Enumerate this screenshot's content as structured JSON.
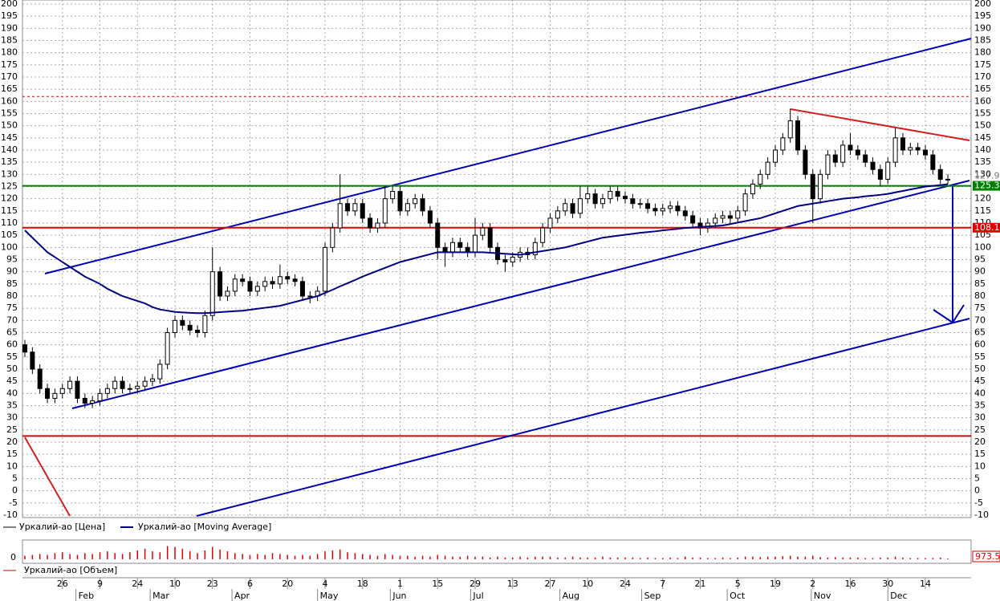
{
  "chart_data": [
    {
      "type": "candlestick",
      "ylim": [
        -10,
        200
      ],
      "yticks": [
        -10,
        -5,
        0,
        5,
        10,
        15,
        20,
        25,
        30,
        35,
        40,
        45,
        50,
        55,
        60,
        65,
        70,
        75,
        80,
        85,
        90,
        95,
        100,
        105,
        110,
        115,
        120,
        125,
        130,
        135,
        140,
        145,
        150,
        155,
        160,
        165,
        170,
        175,
        180,
        185,
        190,
        195,
        200
      ],
      "grid": true,
      "xticks": [
        {
          "value": 5,
          "label": "26"
        },
        {
          "value": 10,
          "label": "9"
        },
        {
          "value": 15,
          "label": "24"
        },
        {
          "value": 20,
          "label": "10"
        },
        {
          "value": 25,
          "label": "23"
        },
        {
          "value": 30,
          "label": "6"
        },
        {
          "value": 35,
          "label": "20"
        },
        {
          "value": 40,
          "label": "4"
        },
        {
          "value": 45,
          "label": "18"
        },
        {
          "value": 50,
          "label": "1"
        },
        {
          "value": 55,
          "label": "15"
        },
        {
          "value": 60,
          "label": "29"
        },
        {
          "value": 65,
          "label": "13"
        },
        {
          "value": 70,
          "label": "27"
        },
        {
          "value": 75,
          "label": "10"
        },
        {
          "value": 80,
          "label": "24"
        },
        {
          "value": 85,
          "label": "7"
        },
        {
          "value": 90,
          "label": "21"
        },
        {
          "value": 95,
          "label": "5"
        },
        {
          "value": 100,
          "label": "19"
        },
        {
          "value": 105,
          "label": "2"
        },
        {
          "value": 110,
          "label": "16"
        },
        {
          "value": 115,
          "label": "30"
        },
        {
          "value": 120,
          "label": "14"
        }
      ],
      "months": [
        {
          "value": 6.8,
          "label": "Feb"
        },
        {
          "value": 16.7,
          "label": "Mar"
        },
        {
          "value": 27.6,
          "label": "Apr"
        },
        {
          "value": 39,
          "label": "May"
        },
        {
          "value": 48.7,
          "label": "Jun"
        },
        {
          "value": 59.4,
          "label": "Jul"
        },
        {
          "value": 71.3,
          "label": "Aug"
        },
        {
          "value": 82.2,
          "label": "Sep"
        },
        {
          "value": 93.6,
          "label": "Oct"
        },
        {
          "value": 104.8,
          "label": "Nov"
        },
        {
          "value": 115,
          "label": "Dec"
        }
      ],
      "series": [
        {
          "name": "Уркалий-ао [Цена]",
          "color": "#000000",
          "open": [
            60,
            57,
            50,
            42,
            38,
            40,
            42,
            45,
            38,
            36,
            37,
            40,
            42,
            45,
            42,
            42,
            43,
            45,
            46,
            52,
            65,
            70,
            68,
            66,
            65,
            72,
            90,
            80,
            82,
            87,
            86,
            82,
            84,
            86,
            85,
            88,
            87,
            86,
            80,
            80,
            82,
            100,
            108,
            118,
            115,
            118,
            112,
            108,
            110,
            120,
            123,
            115,
            118,
            120,
            115,
            110,
            100,
            98,
            102,
            100,
            98,
            105,
            108,
            100,
            95,
            94,
            96,
            98,
            97,
            102,
            108,
            112,
            115,
            118,
            114,
            120,
            122,
            118,
            120,
            123,
            121,
            120,
            118,
            118,
            116,
            115,
            116,
            117,
            115,
            113,
            110,
            108,
            110,
            112,
            113,
            112,
            115,
            122,
            126,
            130,
            135,
            140,
            145,
            152,
            140,
            130,
            120,
            130,
            138,
            135,
            142,
            140,
            138,
            135,
            132,
            128,
            135,
            145,
            140,
            141,
            140,
            138,
            132,
            128
          ],
          "high": [
            62,
            59,
            52,
            44,
            42,
            44,
            47,
            47,
            40,
            39,
            42,
            44,
            47,
            47,
            44,
            45,
            47,
            48,
            54,
            67,
            72,
            72,
            70,
            68,
            74,
            100,
            92,
            84,
            89,
            89,
            88,
            86,
            88,
            88,
            93,
            90,
            89,
            88,
            82,
            84,
            102,
            110,
            130,
            120,
            120,
            120,
            114,
            112,
            125,
            125,
            125,
            120,
            122,
            122,
            117,
            112,
            102,
            104,
            104,
            102,
            112,
            110,
            110,
            102,
            97,
            98,
            100,
            100,
            104,
            110,
            114,
            117,
            120,
            120,
            125,
            125,
            124,
            122,
            125,
            125,
            123,
            122,
            120,
            120,
            118,
            118,
            119,
            119,
            117,
            115,
            112,
            112,
            114,
            115,
            115,
            117,
            124,
            128,
            132,
            137,
            142,
            147,
            157,
            154,
            142,
            132,
            132,
            140,
            140,
            144,
            147,
            142,
            140,
            137,
            134,
            137,
            149,
            147,
            143,
            143,
            142,
            140,
            134,
            130
          ],
          "low": [
            55,
            48,
            40,
            36,
            36,
            38,
            40,
            36,
            34,
            34,
            35,
            38,
            40,
            40,
            40,
            40,
            41,
            43,
            44,
            50,
            63,
            66,
            64,
            63,
            63,
            70,
            78,
            78,
            80,
            84,
            80,
            80,
            82,
            83,
            83,
            85,
            84,
            78,
            77,
            78,
            80,
            98,
            106,
            113,
            113,
            110,
            106,
            106,
            108,
            118,
            113,
            113,
            116,
            113,
            108,
            95,
            92,
            96,
            98,
            96,
            96,
            103,
            98,
            93,
            90,
            92,
            94,
            95,
            95,
            100,
            106,
            110,
            113,
            112,
            112,
            118,
            116,
            116,
            118,
            119,
            118,
            116,
            116,
            114,
            113,
            113,
            114,
            113,
            111,
            108,
            105,
            106,
            108,
            110,
            110,
            110,
            113,
            120,
            124,
            128,
            133,
            138,
            143,
            138,
            128,
            110,
            118,
            128,
            133,
            133,
            138,
            136,
            133,
            130,
            125,
            126,
            133,
            138,
            138,
            138,
            136,
            130,
            126,
            126
          ],
          "close": [
            57,
            50,
            42,
            38,
            40,
            42,
            45,
            38,
            36,
            37,
            40,
            42,
            45,
            42,
            42,
            43,
            45,
            46,
            52,
            65,
            70,
            68,
            66,
            65,
            72,
            90,
            80,
            82,
            87,
            86,
            82,
            84,
            86,
            85,
            88,
            87,
            86,
            80,
            80,
            82,
            100,
            108,
            118,
            115,
            118,
            112,
            108,
            110,
            120,
            123,
            115,
            118,
            120,
            115,
            110,
            100,
            98,
            102,
            100,
            98,
            105,
            108,
            100,
            95,
            94,
            96,
            98,
            97,
            102,
            108,
            112,
            115,
            118,
            114,
            120,
            122,
            118,
            120,
            123,
            121,
            120,
            118,
            118,
            116,
            115,
            116,
            117,
            115,
            113,
            110,
            108,
            110,
            112,
            113,
            112,
            115,
            122,
            126,
            130,
            135,
            140,
            145,
            152,
            140,
            130,
            120,
            130,
            138,
            135,
            142,
            140,
            138,
            135,
            132,
            128,
            135,
            145,
            140,
            141,
            140,
            138,
            132,
            128,
            127.9
          ]
        },
        {
          "name": "Уркалий-ао [Moving Average]",
          "color": "#000080",
          "values": [
            107,
            104,
            101,
            98,
            96,
            94,
            92,
            90,
            88,
            86.5,
            85,
            83,
            81.5,
            80,
            79,
            78,
            77,
            75.5,
            74.5,
            74,
            73.5,
            73.3,
            73.1,
            73,
            73,
            73.2,
            73.4,
            73.6,
            73.8,
            74,
            74.4,
            74.8,
            75.2,
            75.6,
            76,
            76.8,
            77.6,
            78.4,
            79.2,
            80,
            81.3,
            82.6,
            84,
            85.3,
            86.6,
            88,
            89.2,
            90.4,
            91.6,
            92.8,
            94,
            94.8,
            95.6,
            96.4,
            97.2,
            98,
            98,
            98,
            98,
            98,
            98,
            98,
            97.8,
            97.6,
            97.4,
            97.2,
            97,
            97.5,
            98,
            98.5,
            99,
            99.5,
            100,
            100.8,
            101.6,
            102.4,
            103.2,
            104,
            104.4,
            104.8,
            105.2,
            105.6,
            106,
            106.3,
            106.6,
            107,
            107.3,
            107.6,
            108,
            108.2,
            108.4,
            108.6,
            108.8,
            109,
            109.6,
            110.2,
            110.8,
            111.4,
            112,
            113,
            114,
            115,
            116,
            117,
            117.5,
            118,
            118.5,
            119,
            119.5,
            120,
            120.3,
            120.6,
            121,
            121.3,
            121.6,
            122,
            122.6,
            123.2,
            123.8,
            124.4,
            125,
            125.3,
            125.6,
            126
          ]
        }
      ],
      "levels": [
        {
          "value": 125.3,
          "color": "#008000"
        },
        {
          "value": 108.1,
          "color": "#e00000"
        }
      ],
      "lines": [
        {
          "value": 162,
          "color": "#e00000",
          "style": "dotted"
        },
        {
          "value": 22.5,
          "color": "#e00000",
          "style": "solid"
        }
      ]
    },
    {
      "type": "bar",
      "ylim": [
        0,
        20000
      ],
      "yticks": [
        0
      ],
      "series": [
        {
          "name": "Уркалий-ао [Объем]",
          "color": "#e00000",
          "values": [
            4000,
            5000,
            6000,
            5000,
            7000,
            8000,
            6000,
            5000,
            7000,
            6000,
            8000,
            9000,
            7000,
            6000,
            8000,
            10000,
            12000,
            9000,
            8000,
            15000,
            14000,
            12000,
            9000,
            7000,
            10000,
            14000,
            11000,
            9000,
            7000,
            6000,
            5000,
            6000,
            5000,
            7000,
            6000,
            5000,
            4000,
            5000,
            4000,
            6000,
            9000,
            10000,
            11000,
            8000,
            7000,
            6000,
            5000,
            4000,
            6000,
            5000,
            4000,
            4000,
            3000,
            4000,
            3000,
            5000,
            4000,
            3000,
            3000,
            4000,
            3000,
            3000,
            2000,
            3000,
            2000,
            2000,
            3000,
            2000,
            3000,
            3000,
            3000,
            2000,
            2000,
            3000,
            2000,
            2000,
            2000,
            3000,
            2000,
            2000,
            2000,
            2000,
            1500,
            2000,
            1500,
            1500,
            2000,
            1500,
            3000,
            2000,
            2000,
            1500,
            1500,
            2000,
            1500,
            2000,
            3000,
            3000,
            2500,
            3000,
            3000,
            3500,
            4000,
            3000,
            3000,
            4000,
            2500,
            2000,
            2500,
            2000,
            2000,
            2000,
            1500,
            1500,
            2000,
            2000,
            3000,
            2000,
            1500,
            1500,
            1500,
            1500,
            2000,
            973.5
          ]
        }
      ]
    }
  ]
}
